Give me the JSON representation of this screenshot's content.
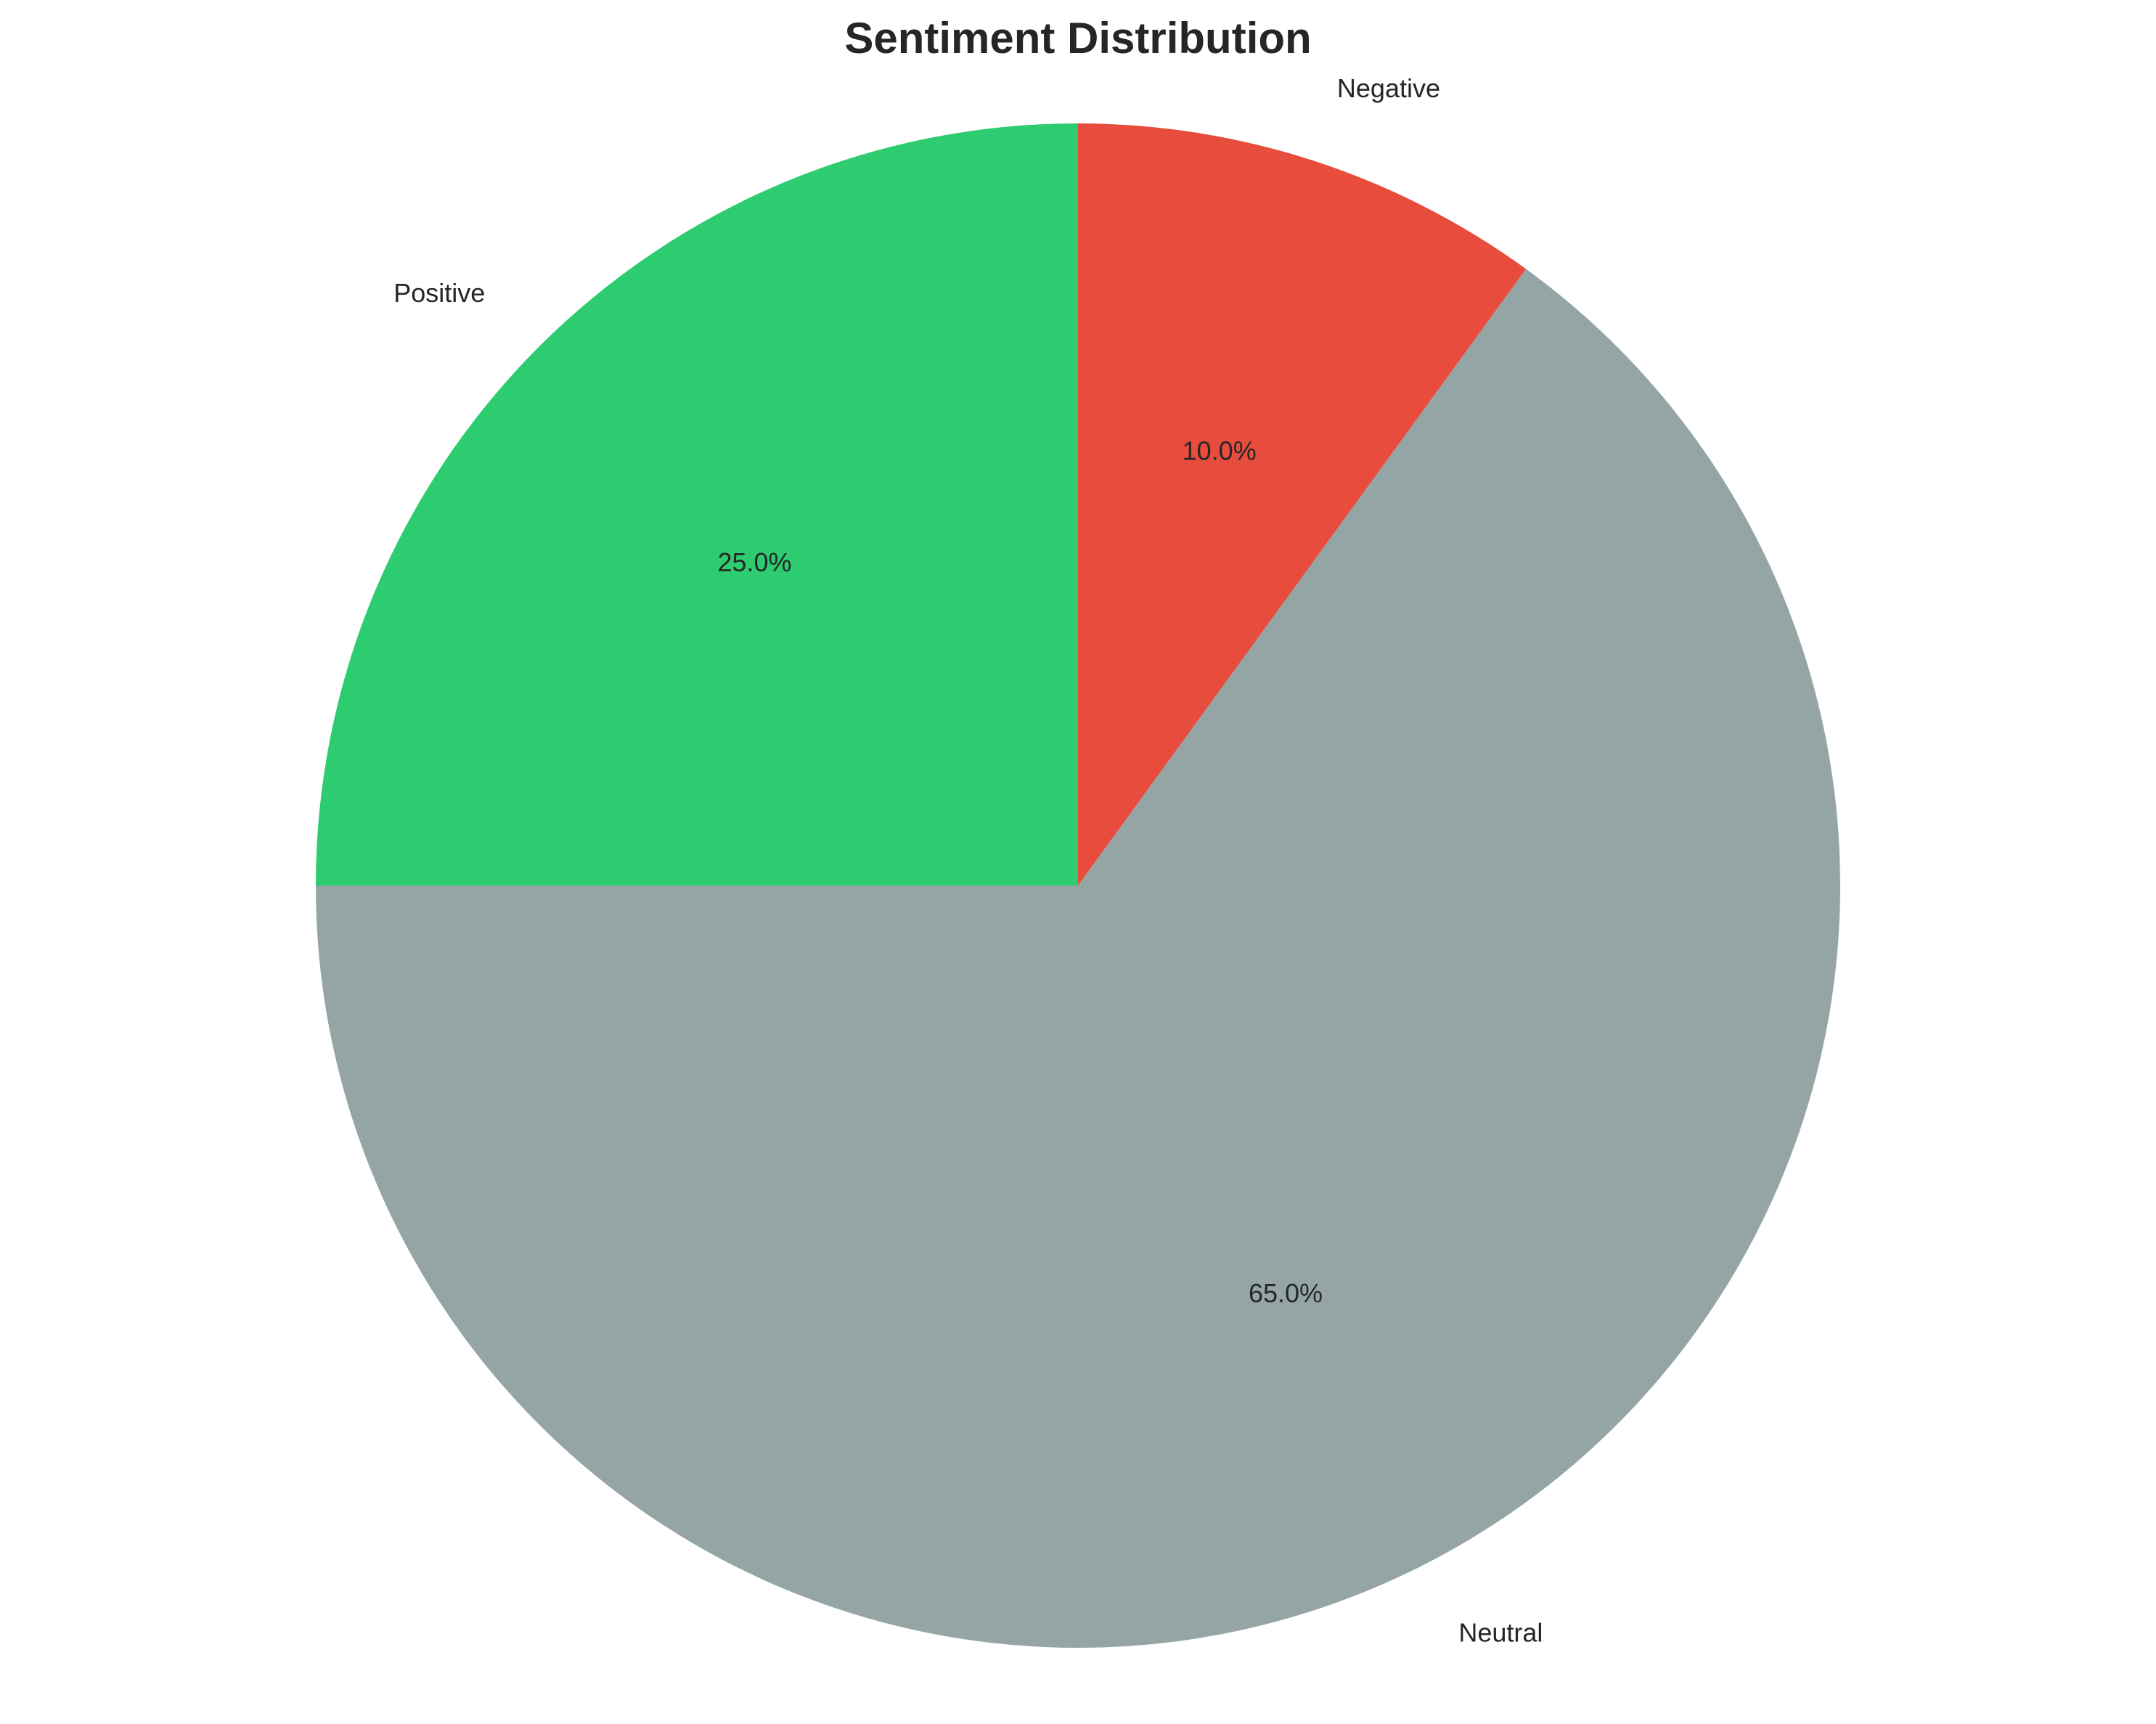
{
  "chart_data": {
    "type": "pie",
    "title": "Sentiment Distribution",
    "start_angle_deg": 90,
    "direction": "clockwise",
    "slices": [
      {
        "label": "Negative",
        "value": 10.0,
        "pct_label": "10.0%",
        "color": "#e74c3c"
      },
      {
        "label": "Neutral",
        "value": 65.0,
        "pct_label": "65.0%",
        "color": "#95a5a6"
      },
      {
        "label": "Positive",
        "value": 25.0,
        "pct_label": "25.0%",
        "color": "#2ecc71"
      }
    ],
    "legend": "none",
    "grid": false
  }
}
